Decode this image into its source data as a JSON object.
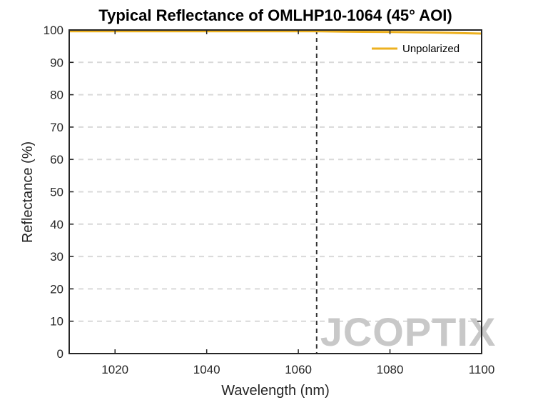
{
  "chart_data": {
    "type": "line",
    "title": "Typical Reflectance of OMLHP10-1064 (45° AOI)",
    "xlabel": "Wavelength (nm)",
    "ylabel": "Reflectance (%)",
    "xlim": [
      1010,
      1100
    ],
    "ylim": [
      0,
      100
    ],
    "xticks": [
      1020,
      1040,
      1060,
      1080,
      1100
    ],
    "yticks": [
      0,
      10,
      20,
      30,
      40,
      50,
      60,
      70,
      80,
      90,
      100
    ],
    "grid": "horizontal dashed",
    "legend_position": "top-right",
    "reference_line_x": 1064,
    "series": [
      {
        "name": "Unpolarized",
        "color": "#EDB120",
        "x": [
          1010,
          1020,
          1030,
          1040,
          1050,
          1060,
          1064,
          1070,
          1080,
          1090,
          1100
        ],
        "y": [
          99.6,
          99.6,
          99.6,
          99.6,
          99.6,
          99.6,
          99.6,
          99.5,
          99.4,
          99.2,
          98.9
        ]
      }
    ]
  },
  "watermark": "JCOPTIX"
}
